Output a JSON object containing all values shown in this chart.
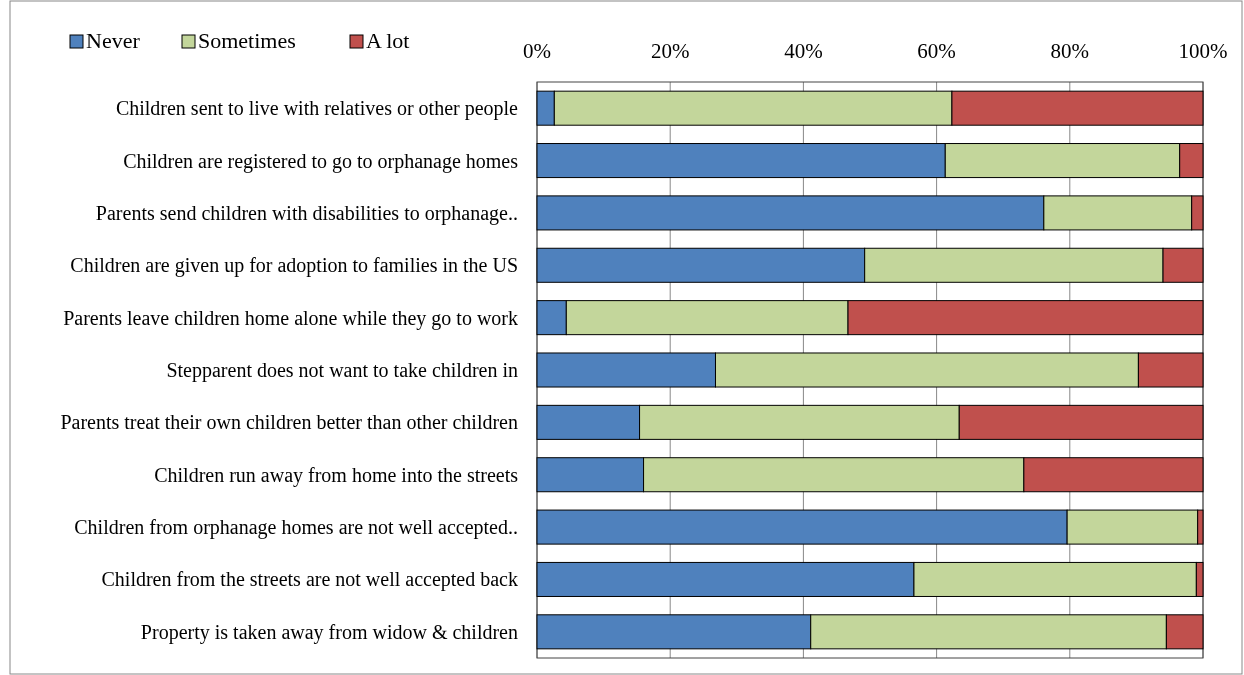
{
  "chart_data": {
    "type": "bar",
    "orientation": "horizontal",
    "stacked": true,
    "categories": [
      "Children sent to live with relatives or other people",
      "Children are registered to go to orphanage homes",
      "Parents send children with disabilities to orphanage..",
      "Children are given up for adoption to families in the US",
      "Parents leave children home alone while they go to work",
      "Stepparent does not want to take children in",
      "Parents treat their own children better than other children",
      "Children run away from home into the streets",
      "Children from orphanage homes are not well accepted..",
      "Children from the streets are not well accepted back",
      "Property is taken away from widow & children"
    ],
    "series": [
      {
        "name": "Never",
        "color": "#4f81bd",
        "values": [
          2.6,
          61.3,
          76.1,
          49.2,
          4.4,
          26.8,
          15.4,
          16.0,
          79.6,
          56.6,
          41.1
        ]
      },
      {
        "name": "Sometimes",
        "color": "#c3d69b",
        "values": [
          59.7,
          35.2,
          22.2,
          44.8,
          42.3,
          63.5,
          48.0,
          57.1,
          19.6,
          42.4,
          53.4
        ]
      },
      {
        "name": "A lot",
        "color": "#c0504d",
        "values": [
          37.7,
          3.5,
          1.7,
          6.0,
          53.3,
          9.7,
          36.6,
          26.9,
          0.8,
          1.0,
          5.5
        ]
      }
    ],
    "xlim": [
      0,
      100
    ],
    "xticks": [
      {
        "value": 0,
        "label": "0%"
      },
      {
        "value": 20,
        "label": "20%"
      },
      {
        "value": 40,
        "label": "40%"
      },
      {
        "value": 60,
        "label": "60%"
      },
      {
        "value": 80,
        "label": "80%"
      },
      {
        "value": 100,
        "label": "100%"
      }
    ],
    "grid": "x",
    "legend": "top left"
  }
}
